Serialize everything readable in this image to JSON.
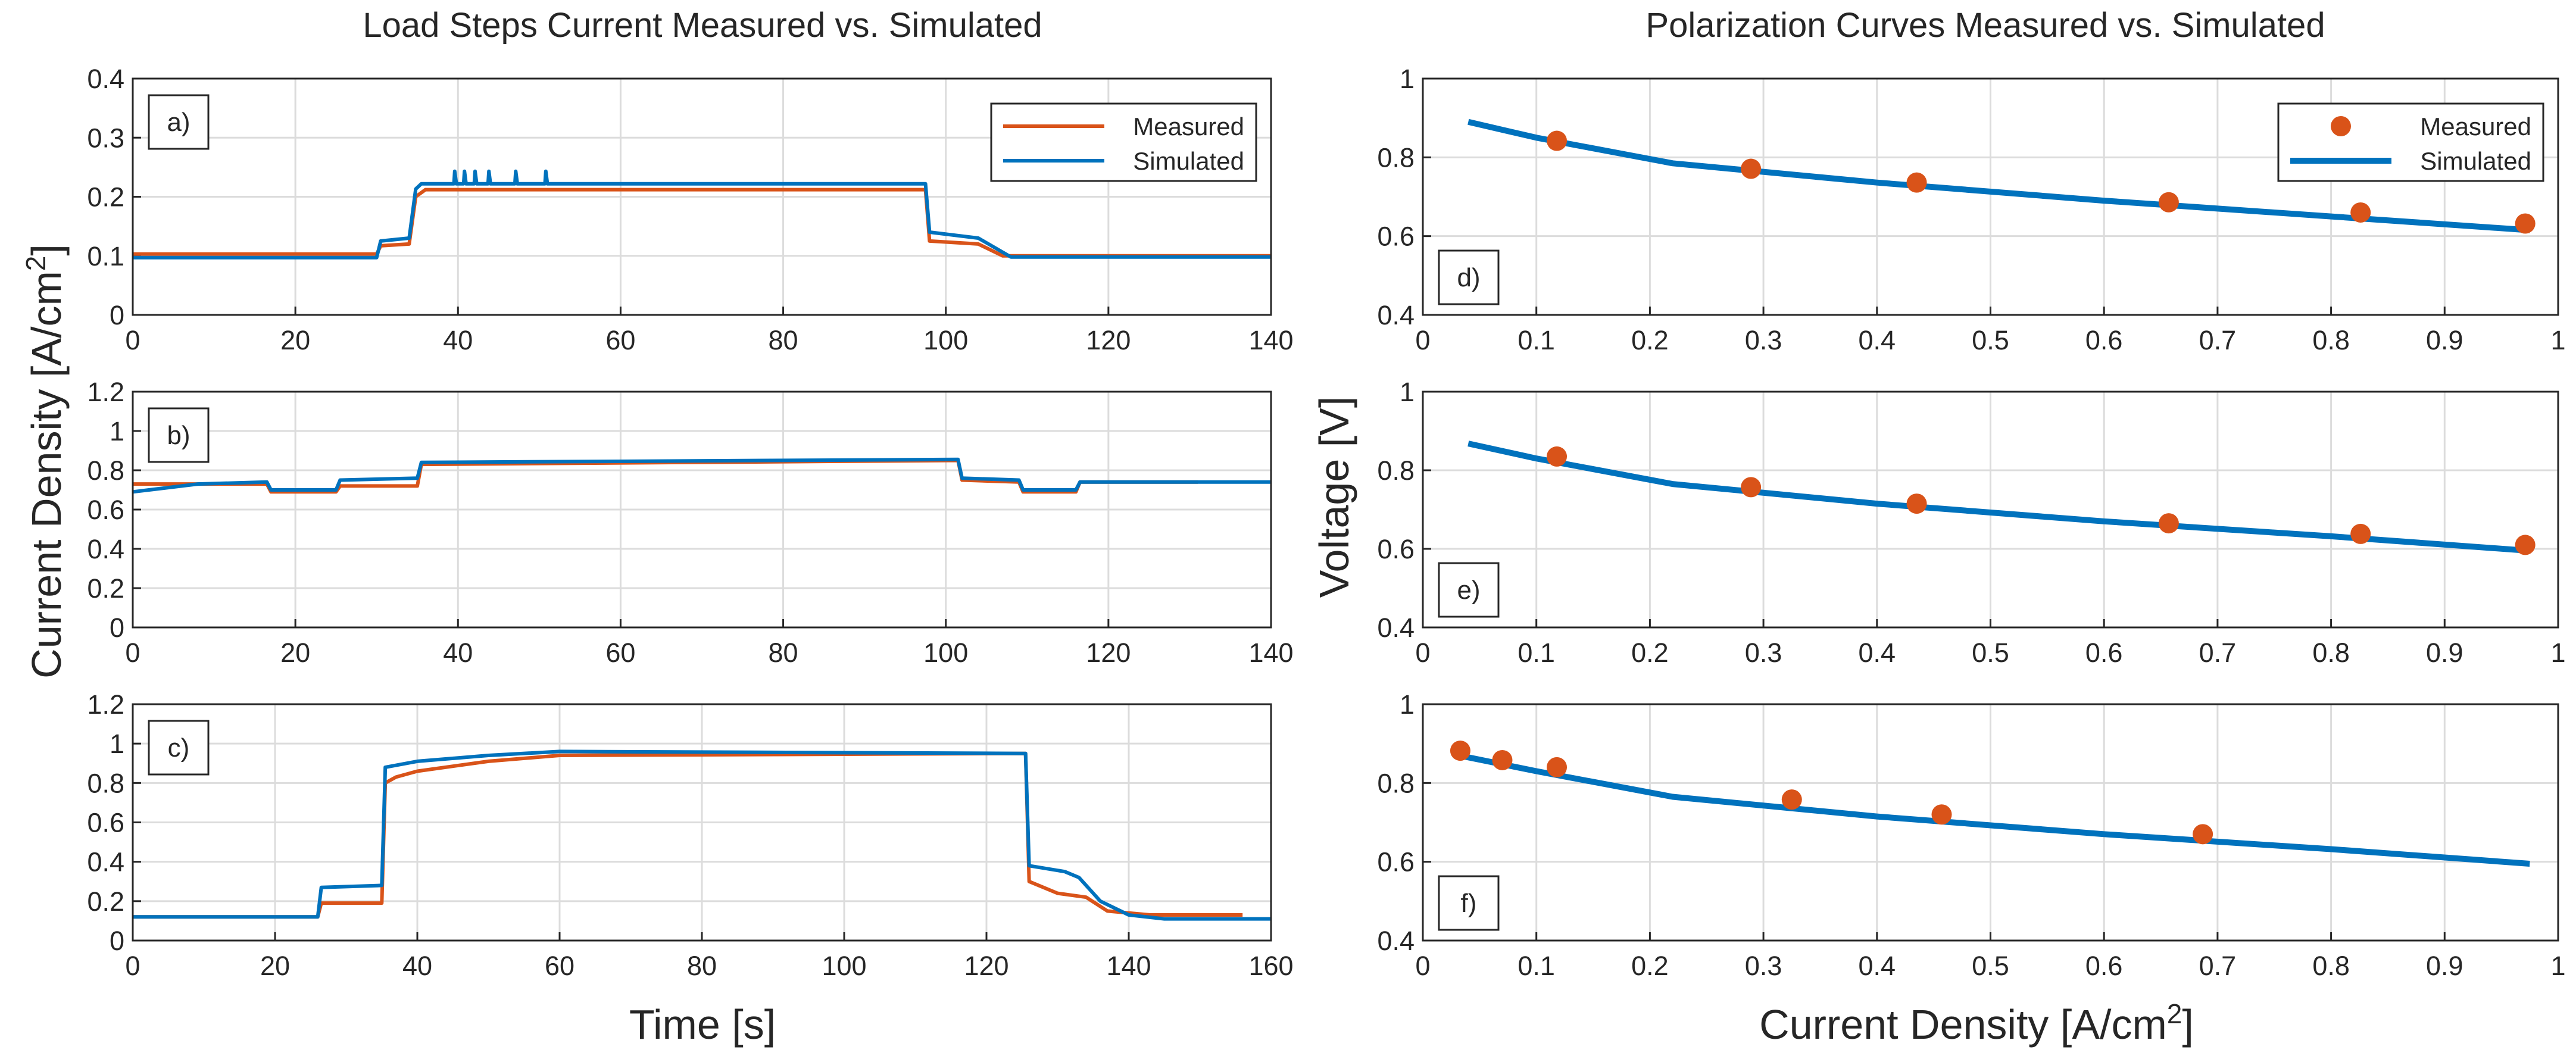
{
  "colors": {
    "measured": "#d95319",
    "simulated": "#0072bd",
    "text": "#262626",
    "grid": "#dcdcdc"
  },
  "titles": {
    "left": "Load Steps Current Measured vs. Simulated",
    "right": "Polarization Curves Measured vs. Simulated"
  },
  "axis_labels": {
    "left_y": "Current Density [A/cm²]",
    "left_x": "Time [s]",
    "right_y": "Voltage [V]",
    "right_x": "Current Density [A/cm²]"
  },
  "legend": {
    "measured": "Measured",
    "simulated": "Simulated"
  },
  "chart_data": [
    {
      "id": "a",
      "label": "a)",
      "type": "line",
      "xlim": [
        0,
        140
      ],
      "ylim": [
        0,
        0.4
      ],
      "xticks": [
        0,
        20,
        40,
        60,
        80,
        100,
        120,
        140
      ],
      "yticks": [
        0,
        0.1,
        0.2,
        0.3,
        0.4
      ],
      "legend": true,
      "series": [
        {
          "name": "Measured",
          "points": [
            [
              0,
              0.103
            ],
            [
              30,
              0.103
            ],
            [
              30.5,
              0.117
            ],
            [
              34,
              0.12
            ],
            [
              34.8,
              0.2
            ],
            [
              36,
              0.212
            ],
            [
              97.5,
              0.212
            ],
            [
              98,
              0.125
            ],
            [
              104,
              0.12
            ],
            [
              107,
              0.1
            ],
            [
              140,
              0.1
            ]
          ]
        },
        {
          "name": "Simulated",
          "points": [
            [
              0,
              0.097
            ],
            [
              30,
              0.097
            ],
            [
              30.5,
              0.125
            ],
            [
              34,
              0.13
            ],
            [
              34.8,
              0.213
            ],
            [
              35.5,
              0.222
            ],
            [
              38,
              0.222
            ],
            [
              39.5,
              0.222
            ],
            [
              39.6,
              0.243
            ],
            [
              39.8,
              0.222
            ],
            [
              40.7,
              0.222
            ],
            [
              40.8,
              0.243
            ],
            [
              41,
              0.222
            ],
            [
              42,
              0.222
            ],
            [
              42.1,
              0.243
            ],
            [
              42.3,
              0.222
            ],
            [
              43.7,
              0.222
            ],
            [
              43.8,
              0.243
            ],
            [
              44,
              0.222
            ],
            [
              47,
              0.222
            ],
            [
              47.1,
              0.243
            ],
            [
              47.3,
              0.222
            ],
            [
              50.7,
              0.222
            ],
            [
              50.8,
              0.243
            ],
            [
              51,
              0.222
            ],
            [
              97.5,
              0.222
            ],
            [
              98,
              0.14
            ],
            [
              104,
              0.13
            ],
            [
              108,
              0.098
            ],
            [
              140,
              0.098
            ]
          ]
        }
      ]
    },
    {
      "id": "b",
      "label": "b)",
      "type": "line",
      "xlim": [
        0,
        140
      ],
      "ylim": [
        0,
        1.2
      ],
      "xticks": [
        0,
        20,
        40,
        60,
        80,
        100,
        120,
        140
      ],
      "yticks": [
        0,
        0.2,
        0.4,
        0.6,
        0.8,
        1,
        1.2
      ],
      "series": [
        {
          "name": "Measured",
          "points": [
            [
              0,
              0.73
            ],
            [
              16.5,
              0.73
            ],
            [
              17,
              0.69
            ],
            [
              25,
              0.69
            ],
            [
              25.5,
              0.72
            ],
            [
              35,
              0.72
            ],
            [
              35.5,
              0.83
            ],
            [
              101.5,
              0.85
            ],
            [
              102,
              0.75
            ],
            [
              109,
              0.74
            ],
            [
              109.5,
              0.69
            ],
            [
              116,
              0.69
            ],
            [
              116.5,
              0.74
            ],
            [
              131,
              0.74
            ]
          ]
        },
        {
          "name": "Simulated",
          "points": [
            [
              0,
              0.69
            ],
            [
              8,
              0.73
            ],
            [
              16.5,
              0.74
            ],
            [
              17,
              0.7
            ],
            [
              25,
              0.7
            ],
            [
              25.5,
              0.75
            ],
            [
              35,
              0.76
            ],
            [
              35.5,
              0.84
            ],
            [
              101.5,
              0.855
            ],
            [
              102,
              0.76
            ],
            [
              109,
              0.75
            ],
            [
              109.5,
              0.7
            ],
            [
              116,
              0.7
            ],
            [
              116.5,
              0.74
            ],
            [
              140,
              0.74
            ]
          ]
        }
      ]
    },
    {
      "id": "c",
      "label": "c)",
      "type": "line",
      "xlim": [
        0,
        160
      ],
      "ylim": [
        0,
        1.2
      ],
      "xticks": [
        0,
        20,
        40,
        60,
        80,
        100,
        120,
        140,
        160
      ],
      "yticks": [
        0,
        0.2,
        0.4,
        0.6,
        0.8,
        1,
        1.2
      ],
      "series": [
        {
          "name": "Measured",
          "points": [
            [
              0,
              0.12
            ],
            [
              26,
              0.12
            ],
            [
              26.5,
              0.19
            ],
            [
              35,
              0.19
            ],
            [
              35.5,
              0.8
            ],
            [
              37,
              0.83
            ],
            [
              40,
              0.86
            ],
            [
              50,
              0.91
            ],
            [
              60,
              0.94
            ],
            [
              125.5,
              0.95
            ],
            [
              126,
              0.3
            ],
            [
              130,
              0.24
            ],
            [
              134,
              0.22
            ],
            [
              137,
              0.15
            ],
            [
              143,
              0.13
            ],
            [
              156,
              0.13
            ]
          ]
        },
        {
          "name": "Simulated",
          "points": [
            [
              0,
              0.12
            ],
            [
              26,
              0.12
            ],
            [
              26.5,
              0.27
            ],
            [
              35,
              0.28
            ],
            [
              35.5,
              0.88
            ],
            [
              40,
              0.91
            ],
            [
              50,
              0.94
            ],
            [
              60,
              0.96
            ],
            [
              125.5,
              0.95
            ],
            [
              126,
              0.38
            ],
            [
              131,
              0.35
            ],
            [
              133,
              0.32
            ],
            [
              136,
              0.2
            ],
            [
              140,
              0.13
            ],
            [
              145,
              0.11
            ],
            [
              160,
              0.11
            ]
          ]
        }
      ]
    },
    {
      "id": "d",
      "label": "d)",
      "type": "scatter+line",
      "xlim": [
        0,
        1
      ],
      "ylim": [
        0.4,
        1
      ],
      "xticks": [
        0,
        0.1,
        0.2,
        0.3,
        0.4,
        0.5,
        0.6,
        0.7,
        0.8,
        0.9,
        1
      ],
      "yticks": [
        0.4,
        0.6,
        0.8,
        1
      ],
      "legend": true,
      "measured": [
        [
          0.118,
          0.842
        ],
        [
          0.289,
          0.771
        ],
        [
          0.435,
          0.736
        ],
        [
          0.657,
          0.686
        ],
        [
          0.826,
          0.66
        ],
        [
          0.971,
          0.632
        ]
      ],
      "simulated": [
        [
          0.04,
          0.89
        ],
        [
          0.1,
          0.85
        ],
        [
          0.22,
          0.785
        ],
        [
          0.4,
          0.736
        ],
        [
          0.6,
          0.69
        ],
        [
          0.8,
          0.65
        ],
        [
          0.975,
          0.615
        ]
      ]
    },
    {
      "id": "e",
      "label": "e)",
      "type": "scatter+line",
      "xlim": [
        0,
        1
      ],
      "ylim": [
        0.4,
        1
      ],
      "xticks": [
        0,
        0.1,
        0.2,
        0.3,
        0.4,
        0.5,
        0.6,
        0.7,
        0.8,
        0.9,
        1
      ],
      "yticks": [
        0.4,
        0.6,
        0.8,
        1
      ],
      "measured": [
        [
          0.118,
          0.835
        ],
        [
          0.289,
          0.757
        ],
        [
          0.435,
          0.715
        ],
        [
          0.657,
          0.665
        ],
        [
          0.826,
          0.638
        ],
        [
          0.971,
          0.61
        ]
      ],
      "simulated": [
        [
          0.04,
          0.868
        ],
        [
          0.1,
          0.83
        ],
        [
          0.22,
          0.765
        ],
        [
          0.4,
          0.715
        ],
        [
          0.6,
          0.67
        ],
        [
          0.8,
          0.632
        ],
        [
          0.975,
          0.595
        ]
      ]
    },
    {
      "id": "f",
      "label": "f)",
      "type": "scatter+line",
      "xlim": [
        0,
        1
      ],
      "ylim": [
        0.4,
        1
      ],
      "xticks": [
        0,
        0.1,
        0.2,
        0.3,
        0.4,
        0.5,
        0.6,
        0.7,
        0.8,
        0.9,
        1
      ],
      "yticks": [
        0.4,
        0.6,
        0.8,
        1
      ],
      "measured": [
        [
          0.033,
          0.882
        ],
        [
          0.07,
          0.858
        ],
        [
          0.118,
          0.84
        ],
        [
          0.325,
          0.758
        ],
        [
          0.457,
          0.72
        ],
        [
          0.687,
          0.67
        ]
      ],
      "simulated": [
        [
          0.035,
          0.868
        ],
        [
          0.1,
          0.83
        ],
        [
          0.22,
          0.765
        ],
        [
          0.4,
          0.715
        ],
        [
          0.6,
          0.67
        ],
        [
          0.8,
          0.632
        ],
        [
          0.975,
          0.595
        ]
      ]
    }
  ]
}
